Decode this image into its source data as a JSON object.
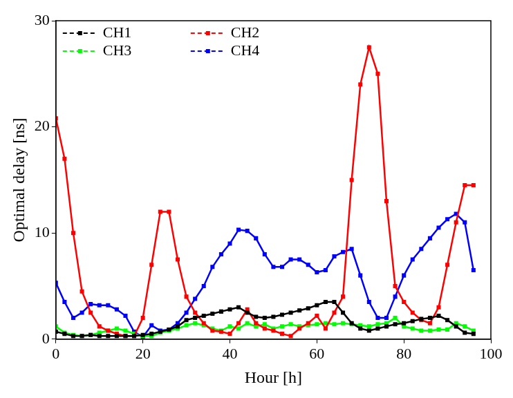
{
  "chart_data": {
    "type": "line",
    "x_label": "Hour [h]",
    "y_label": "Optimal delay [ns]",
    "x": [
      0,
      2,
      4,
      6,
      8,
      10,
      12,
      14,
      16,
      18,
      20,
      22,
      24,
      26,
      28,
      30,
      32,
      34,
      36,
      38,
      40,
      42,
      44,
      46,
      48,
      50,
      52,
      54,
      56,
      58,
      60,
      62,
      64,
      66,
      68,
      70,
      72,
      74,
      76,
      78,
      80,
      82,
      84,
      86,
      88,
      90,
      92,
      94,
      96
    ],
    "series": [
      {
        "name": "CH1",
        "color": "#000000",
        "marker": "square",
        "line_style": "solid",
        "values": [
          0.7,
          0.5,
          0.3,
          0.3,
          0.4,
          0.3,
          0.3,
          0.3,
          0.3,
          0.3,
          0.4,
          0.5,
          0.7,
          0.9,
          1.2,
          1.8,
          2,
          2.2,
          2.4,
          2.6,
          2.8,
          3,
          2.5,
          2.1,
          2,
          2.1,
          2.3,
          2.5,
          2.7,
          2.9,
          3.2,
          3.5,
          3.5,
          2.5,
          1.5,
          1,
          0.8,
          1,
          1.2,
          1.4,
          1.5,
          1.7,
          1.9,
          2,
          2.2,
          1.8,
          1.2,
          0.6,
          0.5
        ]
      },
      {
        "name": "CH2",
        "color": "#ff0000",
        "marker": "square",
        "line_style": "solid",
        "values": [
          20.8,
          17,
          10,
          4.5,
          2.5,
          1.2,
          0.8,
          0.5,
          0.3,
          0.3,
          2,
          7,
          12,
          12,
          7.5,
          4,
          2.5,
          1.5,
          0.8,
          0.7,
          0.5,
          1.5,
          2.8,
          1.5,
          1,
          0.8,
          0.5,
          0.3,
          1,
          1.5,
          2.2,
          1,
          2.5,
          4,
          15,
          24,
          27.5,
          25,
          13,
          5,
          3.5,
          2.5,
          1.8,
          1.5,
          3,
          7,
          11,
          14.5,
          14.5
        ]
      },
      {
        "name": "CH3",
        "color": "#00ff00",
        "marker": "square",
        "line_style": "solid",
        "values": [
          1.2,
          0.6,
          0.4,
          0.3,
          0.4,
          0.6,
          0.8,
          1,
          0.8,
          0.5,
          0.3,
          0.3,
          0.6,
          0.8,
          1,
          1.3,
          1.5,
          1.3,
          1,
          0.8,
          1.2,
          1,
          1.5,
          1.2,
          1.4,
          1,
          1.2,
          1.4,
          1.2,
          1.3,
          1.4,
          1.5,
          1.4,
          1.5,
          1.4,
          1.3,
          1.2,
          1.4,
          1.5,
          2,
          1.2,
          1,
          0.8,
          0.8,
          0.9,
          0.9,
          1.5,
          1.2,
          0.8
        ]
      },
      {
        "name": "CH4",
        "color": "#0000ff",
        "marker": "square",
        "line_style": "solid",
        "values": [
          5.3,
          3.5,
          2,
          2.5,
          3.3,
          3.2,
          3.2,
          2.8,
          2.2,
          0.7,
          0.2,
          1.3,
          0.8,
          0.9,
          1.5,
          2.5,
          3.8,
          5,
          6.8,
          8,
          9,
          10.3,
          10.2,
          9.5,
          8,
          6.8,
          6.8,
          7.5,
          7.5,
          7,
          6.3,
          6.5,
          7.8,
          8.2,
          8.5,
          6,
          3.5,
          2,
          2,
          4,
          6,
          7.5,
          8.5,
          9.5,
          10.5,
          11.3,
          11.8,
          11,
          6.5
        ]
      }
    ],
    "xlim": [
      0,
      100
    ],
    "xticks": [
      0,
      20,
      40,
      60,
      80,
      100
    ],
    "ylim": [
      0,
      30
    ],
    "yticks": [
      0,
      10,
      20,
      30
    ],
    "grid": false,
    "legend": "upper left"
  }
}
